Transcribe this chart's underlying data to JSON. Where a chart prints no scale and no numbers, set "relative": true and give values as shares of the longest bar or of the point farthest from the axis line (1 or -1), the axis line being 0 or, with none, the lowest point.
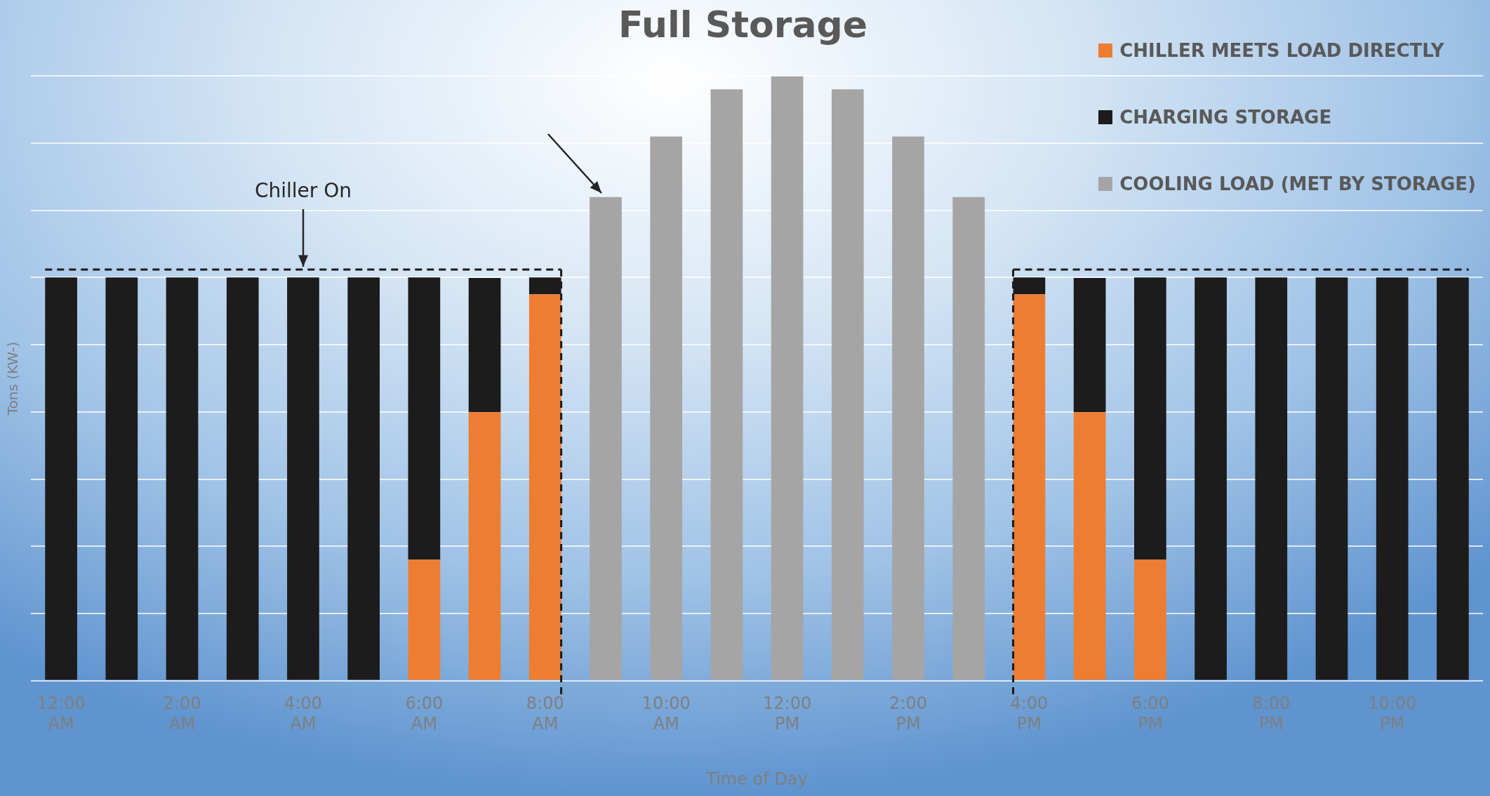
{
  "chart_data": {
    "type": "bar",
    "title": "Full Storage",
    "xlabel": "Time of Day",
    "ylabel": "Tons (KW-)",
    "relative": true,
    "stacked": true,
    "grid": "y",
    "legend": "top right",
    "categories": [
      "12:00 AM",
      null,
      "2:00 AM",
      null,
      "4:00 AM",
      null,
      "6:00 AM",
      null,
      "8:00 AM",
      null,
      "10:00 AM",
      null,
      "12:00 PM",
      null,
      "2:00 PM",
      null,
      "4:00 PM",
      null,
      "6:00 PM",
      null,
      "8:00 PM",
      null,
      "10:00 PM",
      null
    ],
    "series": [
      {
        "name": "CHILLER MEETS LOAD DIRECTLY",
        "color": "#ed7d31",
        "values": [
          null,
          null,
          null,
          null,
          null,
          null,
          0.2,
          0.444,
          0.639,
          null,
          null,
          null,
          null,
          null,
          null,
          null,
          0.639,
          0.444,
          0.2,
          null,
          null,
          null,
          null,
          null
        ]
      },
      {
        "name": "CHARGING STORAGE",
        "color": "#1c1c1c",
        "values": [
          0.667,
          0.667,
          0.667,
          0.667,
          0.667,
          0.667,
          0.467,
          0.222,
          0.028,
          null,
          null,
          null,
          null,
          null,
          null,
          null,
          0.028,
          0.222,
          0.467,
          0.667,
          0.667,
          0.667,
          0.667,
          0.667
        ]
      },
      {
        "name": "COOLING LOAD (MET BY STORAGE)",
        "color": "#a5a5a5",
        "values": [
          null,
          null,
          null,
          null,
          null,
          null,
          null,
          null,
          null,
          0.8,
          0.9,
          0.978,
          1,
          0.978,
          0.9,
          0.8,
          null,
          null,
          null,
          null,
          null,
          null,
          null,
          null
        ]
      }
    ],
    "ref_lines": [
      {
        "axis": "y",
        "value": 0.68,
        "label": "Chiller On",
        "line_style": "dashed",
        "color": "#1a1a1a"
      }
    ]
  }
}
